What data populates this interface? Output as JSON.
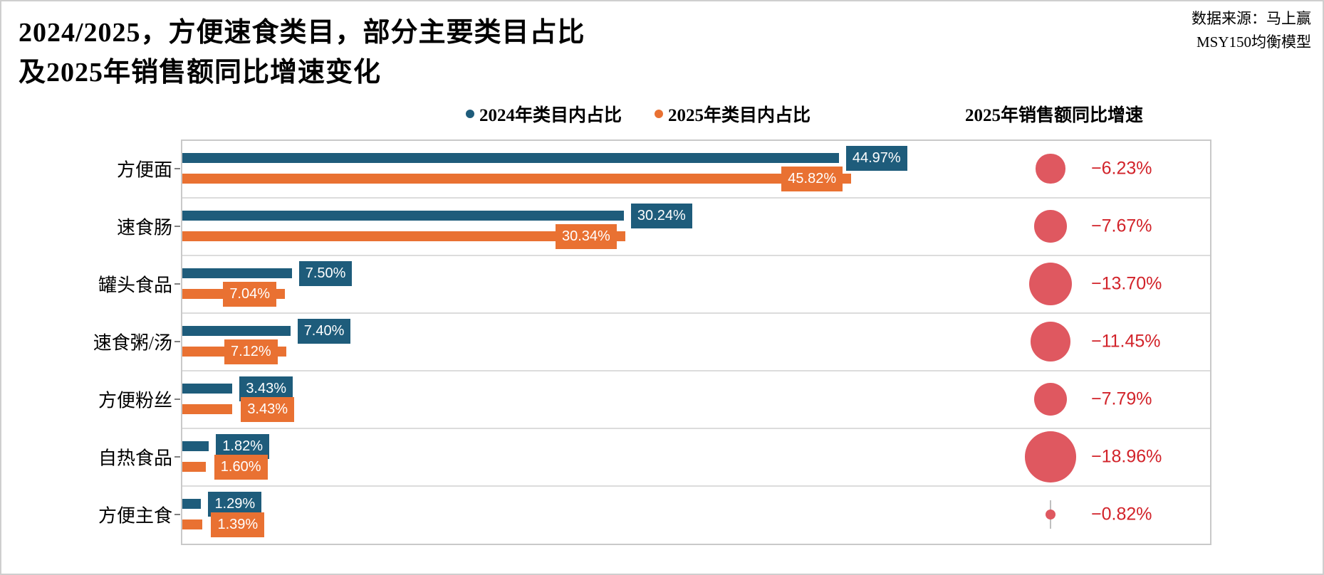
{
  "title": {
    "line1": "2024/2025，方便速食类目，部分主要类目占比",
    "line2": "及2025年销售额同比增速变化"
  },
  "source": {
    "line1": "数据来源：马上赢",
    "line2": "MSY150均衡模型"
  },
  "legend": {
    "items": [
      {
        "label": "2024年类目内占比",
        "color": "#1E5C7B"
      },
      {
        "label": "2025年类目内占比",
        "color": "#E97132"
      }
    ]
  },
  "growth_header": "2025年销售额同比增速",
  "colors": {
    "series_2024": "#1E5C7B",
    "series_2025": "#E97132",
    "bubble": "#DF5860",
    "growth_text": "#D2232A",
    "grid": "#dcdcdc",
    "plot_border": "#c9c9c9"
  },
  "chart_data": {
    "type": "bar",
    "orientation": "horizontal",
    "title": "2024/2025，方便速食类目，部分主要类目占比及2025年销售额同比增速变化",
    "categories": [
      "方便面",
      "速食肠",
      "罐头食品",
      "速食粥/汤",
      "方便粉丝",
      "自热食品",
      "方便主食"
    ],
    "series": [
      {
        "name": "2024年类目内占比",
        "color": "#1E5C7B",
        "values": [
          44.97,
          30.24,
          7.5,
          7.4,
          3.43,
          1.82,
          1.29
        ],
        "labels": [
          "44.97%",
          "30.24%",
          "7.50%",
          "7.40%",
          "3.43%",
          "1.82%",
          "1.29%"
        ]
      },
      {
        "name": "2025年类目内占比",
        "color": "#E97132",
        "values": [
          45.82,
          30.34,
          7.04,
          7.12,
          3.43,
          1.6,
          1.39
        ],
        "labels": [
          "45.82%",
          "30.34%",
          "7.04%",
          "7.12%",
          "3.43%",
          "1.60%",
          "1.39%"
        ]
      }
    ],
    "growth": {
      "name": "2025年销售额同比增速",
      "bubble_color": "#DF5860",
      "text_color": "#D2232A",
      "values": [
        -6.23,
        -7.67,
        -13.7,
        -11.45,
        -7.79,
        -18.96,
        -0.82
      ],
      "labels": [
        "−6.23%",
        "−7.67%",
        "−13.70%",
        "−11.45%",
        "−7.79%",
        "−18.96%",
        "−0.82%"
      ],
      "bubble_size_rule": "diameter proportional to sqrt(|value|)",
      "stem_rows": [
        6
      ]
    },
    "xlim": [
      0,
      70.5
    ],
    "grid": "horizontal row separators",
    "legend_position": "top"
  }
}
